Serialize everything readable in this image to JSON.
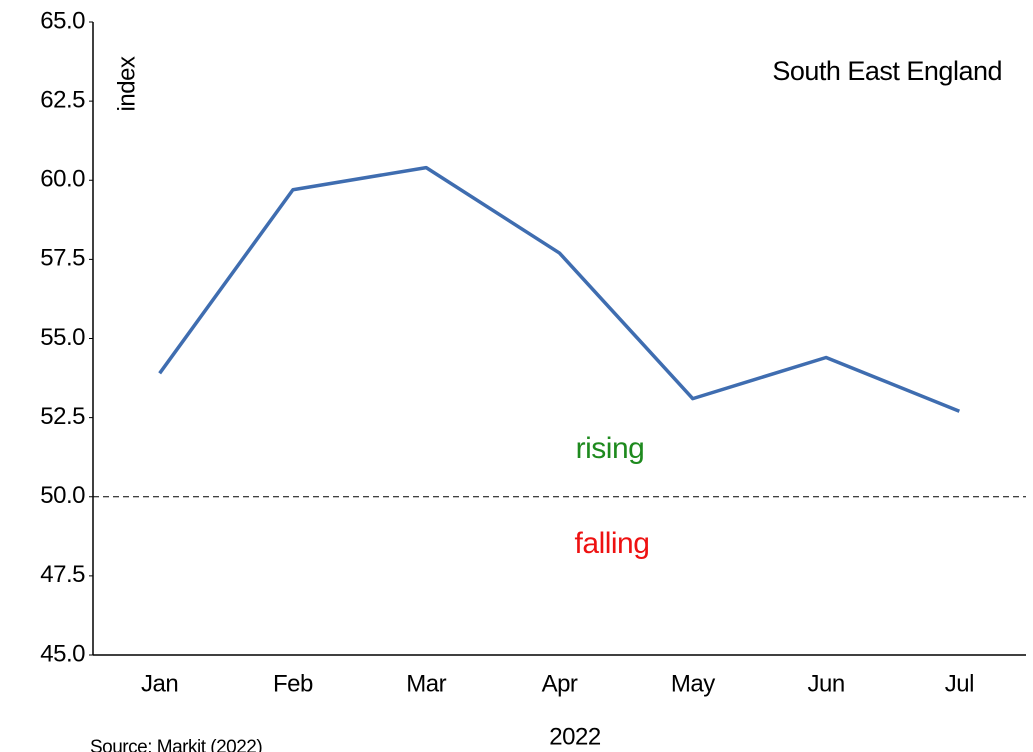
{
  "chart_data": {
    "type": "line",
    "title": "South East England",
    "y_label": "index",
    "x_label": "2022",
    "source": "Source: Markit (2022)",
    "categories": [
      "Jan",
      "Feb",
      "Mar",
      "Apr",
      "May",
      "Jun",
      "Jul"
    ],
    "series": [
      {
        "name": "South East England",
        "color": "#3f6db0",
        "values": [
          53.9,
          59.7,
          60.4,
          57.7,
          53.1,
          54.4,
          52.7
        ]
      }
    ],
    "ylim": [
      45,
      65
    ],
    "yticks": [
      {
        "value": 45,
        "label": "45.0"
      },
      {
        "value": 47.5,
        "label": "47.5"
      },
      {
        "value": 50,
        "label": "50.0"
      },
      {
        "value": 52.5,
        "label": "52.5"
      },
      {
        "value": 55,
        "label": "55.0"
      },
      {
        "value": 57.5,
        "label": "57.5"
      },
      {
        "value": 60,
        "label": "60.0"
      },
      {
        "value": 62.5,
        "label": "62.5"
      },
      {
        "value": 65,
        "label": "65.0"
      }
    ],
    "reference_line": 50,
    "annotations": [
      {
        "text": "rising",
        "color": "#1e8a1e"
      },
      {
        "text": "falling",
        "color": "#ee1111"
      }
    ],
    "grid": false
  }
}
